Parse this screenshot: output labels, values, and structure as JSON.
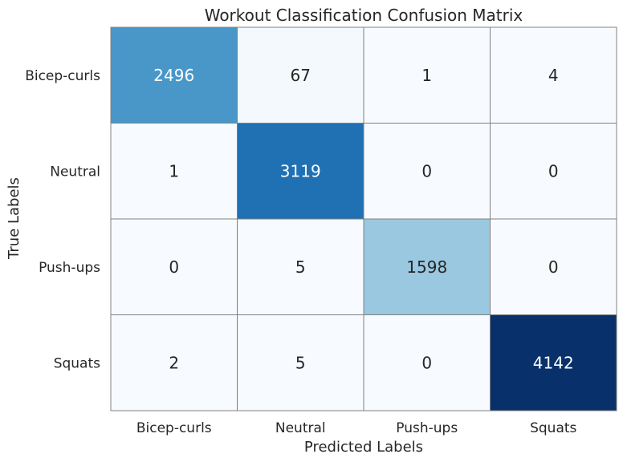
{
  "chart_data": {
    "type": "heatmap",
    "title": "Workout Classification Confusion Matrix",
    "xlabel": "Predicted Labels",
    "ylabel": "True Labels",
    "x_categories": [
      "Bicep-curls",
      "Neutral",
      "Push-ups",
      "Squats"
    ],
    "y_categories": [
      "Bicep-curls",
      "Neutral",
      "Push-ups",
      "Squats"
    ],
    "values": [
      [
        2496,
        67,
        1,
        4
      ],
      [
        1,
        3119,
        0,
        0
      ],
      [
        0,
        5,
        1598,
        0
      ],
      [
        2,
        5,
        0,
        4142
      ]
    ],
    "colormap": "Blues",
    "grid": true,
    "colorbar": false,
    "cell_border_color": "#808080"
  }
}
